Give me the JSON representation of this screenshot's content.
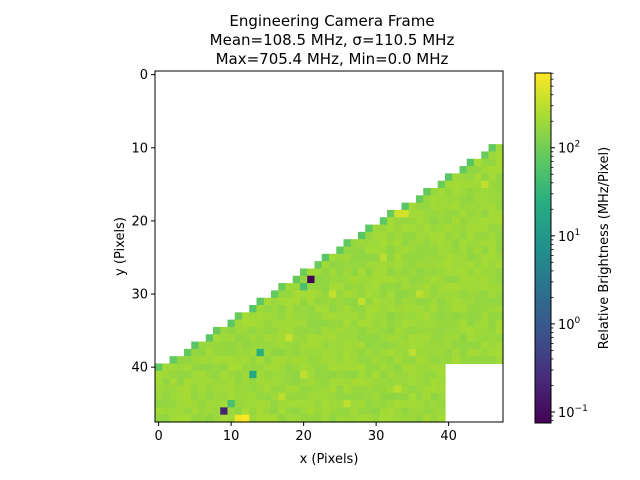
{
  "chart_data": {
    "type": "heatmap",
    "title_lines": [
      "Engineering Camera Frame",
      "Mean=108.5 MHz, σ=110.5 MHz",
      "Max=705.4 MHz, Min=0.0 MHz"
    ],
    "xlabel": "x (Pixels)",
    "ylabel": "y (Pixels)",
    "xlim": [
      -0.5,
      47.5
    ],
    "ylim": [
      47.5,
      -0.5
    ],
    "xticks": [
      0,
      10,
      20,
      30,
      40
    ],
    "yticks": [
      0,
      10,
      20,
      30,
      40
    ],
    "colorbar": {
      "label": "Relative Brightness (MHz/Pixel)",
      "scale": "log",
      "range": [
        0.075,
        705.4
      ],
      "ticks": [
        {
          "value": 0.1,
          "base": "10",
          "exp": "−1"
        },
        {
          "value": 1,
          "base": "10",
          "exp": "0"
        },
        {
          "value": 10,
          "base": "10",
          "exp": "1"
        },
        {
          "value": 100,
          "base": "10",
          "exp": "2"
        }
      ],
      "colormap": "viridis"
    },
    "mask": {
      "left_edge_points": [
        [
          48,
          8.5
        ],
        [
          0,
          40
        ]
      ],
      "right_full_bottom_row": 7.5,
      "right_cut_from_col": 40,
      "right_cut_until_row": 39.5
    },
    "typical_value": 190,
    "edge_value": 80,
    "outliers": [
      {
        "x": 12,
        "y": 47,
        "value": 700
      },
      {
        "x": 11,
        "y": 47,
        "value": 600
      },
      {
        "x": 21,
        "y": 28,
        "value": 0.075
      },
      {
        "x": 9,
        "y": 46,
        "value": 0.2
      },
      {
        "x": 38,
        "y": 3,
        "value": 10
      },
      {
        "x": 30,
        "y": 13,
        "value": 20
      },
      {
        "x": 13,
        "y": 41,
        "value": 20
      },
      {
        "x": 14,
        "y": 38,
        "value": 25
      },
      {
        "x": 22,
        "y": 25,
        "value": 30
      },
      {
        "x": 10,
        "y": 45,
        "value": 50
      },
      {
        "x": 39,
        "y": 2,
        "value": 60
      },
      {
        "x": 20,
        "y": 29,
        "value": 50
      },
      {
        "x": 33,
        "y": 19,
        "value": 400
      },
      {
        "x": 34,
        "y": 19,
        "value": 400
      },
      {
        "x": 41,
        "y": 5,
        "value": 350
      },
      {
        "x": 42,
        "y": 8,
        "value": 300
      },
      {
        "x": 45,
        "y": 15,
        "value": 320
      },
      {
        "x": 29,
        "y": 16,
        "value": 400
      },
      {
        "x": 18,
        "y": 36,
        "value": 330
      },
      {
        "x": 28,
        "y": 31,
        "value": 320
      },
      {
        "x": 36,
        "y": 30,
        "value": 300
      },
      {
        "x": 35,
        "y": 38,
        "value": 300
      },
      {
        "x": 20,
        "y": 41,
        "value": 320
      },
      {
        "x": 26,
        "y": 45,
        "value": 300
      },
      {
        "x": 33,
        "y": 43,
        "value": 300
      },
      {
        "x": 17,
        "y": 44,
        "value": 300
      },
      {
        "x": 38,
        "y": 9,
        "value": 320
      },
      {
        "x": 24,
        "y": 30,
        "value": 320
      },
      {
        "x": 31,
        "y": 25,
        "value": 300
      }
    ]
  }
}
